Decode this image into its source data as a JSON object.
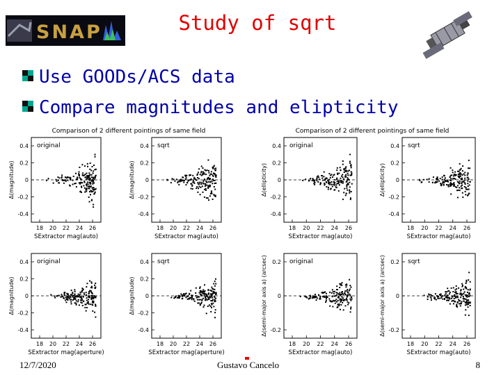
{
  "slide": {
    "title": "Study of sqrt",
    "logo_text": "SNAP",
    "bullets": [
      "Use GOODs/ACS data",
      "Compare magnitudes and elipticity"
    ],
    "footer": {
      "date": "12/7/2020",
      "author": "Gustavo Cancelo",
      "page": "8"
    }
  },
  "figures": [
    {
      "title": "Comparison of 2 different pointings of same field",
      "panels": [
        {
          "label": "original",
          "ylabel": "Δ(magnitude)",
          "xlabel": "SExtractor mag(auto)",
          "xticks": [
            "18",
            "20",
            "22",
            "24",
            "26"
          ],
          "yticks": [
            "0.4",
            "0.2",
            "0",
            "-0.2",
            "-0.4"
          ]
        },
        {
          "label": "sqrt",
          "ylabel": "Δ(magnitude)",
          "xlabel": "SExtractor mag(auto)",
          "xticks": [
            "18",
            "20",
            "22",
            "24",
            "26"
          ],
          "yticks": [
            "0.4",
            "0.2",
            "0",
            "-0.2",
            "-0.4"
          ]
        },
        {
          "label": "original",
          "ylabel": "Δ(magnitude)",
          "xlabel": "SExtractor mag(aperture)",
          "xticks": [
            "18",
            "20",
            "22",
            "24",
            "26"
          ],
          "yticks": [
            "0.4",
            "0.2",
            "0",
            "-0.2",
            "-0.4"
          ]
        },
        {
          "label": "sqrt",
          "ylabel": "Δ(magnitude)",
          "xlabel": "SExtractor mag(aperture)",
          "xticks": [
            "18",
            "20",
            "22",
            "24",
            "26"
          ],
          "yticks": [
            "0.4",
            "0.2",
            "0",
            "-0.2",
            "-0.4"
          ]
        }
      ]
    },
    {
      "title": "Comparison of 2 different pointings of same field",
      "panels": [
        {
          "label": "original",
          "ylabel": "Δ(ellipticity)",
          "xlabel": "SExtractor mag(auto)",
          "xticks": [
            "18",
            "20",
            "22",
            "24",
            "26"
          ],
          "yticks": [
            "0.4",
            "0.2",
            "0",
            "-0.2",
            "-0.4"
          ]
        },
        {
          "label": "sqrt",
          "ylabel": "Δ(ellipticity)",
          "xlabel": "SExtractor mag(auto)",
          "xticks": [
            "18",
            "20",
            "22",
            "24",
            "26"
          ],
          "yticks": [
            "0.4",
            "0.2",
            "0",
            "-0.2",
            "-0.4"
          ]
        },
        {
          "label": "original",
          "ylabel": "Δ(semi-major axis a) (arcsec)",
          "xlabel": "SExtractor mag(auto)",
          "xticks": [
            "18",
            "20",
            "22",
            "24",
            "26"
          ],
          "yticks": [
            "0.2",
            "0",
            "-0.2"
          ]
        },
        {
          "label": "sqrt",
          "ylabel": "Δ(semi-major axis a) (arcsec)",
          "xlabel": "SExtractor mag(auto)",
          "xticks": [
            "18",
            "20",
            "22",
            "24",
            "26"
          ],
          "yticks": [
            "0.2",
            "0",
            "-0.2"
          ]
        }
      ]
    }
  ],
  "colors": {
    "title": "#e00000",
    "bullet_text": "#0000aa",
    "bullet_accent": "#00a88f"
  }
}
